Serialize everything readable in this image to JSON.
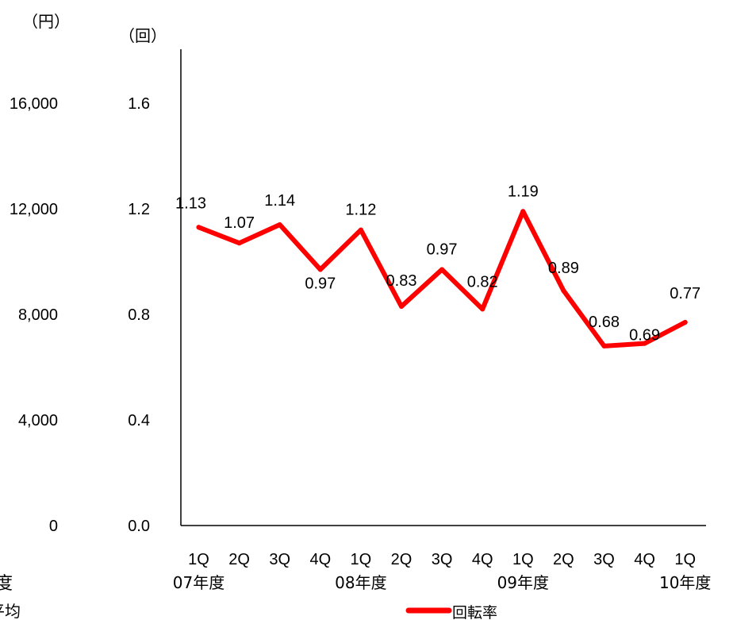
{
  "chart_data": {
    "type": "line",
    "left_axis": {
      "unit": "（円）",
      "ticks": [
        "16,000",
        "12,000",
        "8,000",
        "4,000",
        "0"
      ],
      "tick_values": [
        16000,
        12000,
        8000,
        4000,
        0
      ]
    },
    "y_axis": {
      "unit": "（回）",
      "ticks": [
        "1.6",
        "1.2",
        "0.8",
        "0.4",
        "0.0"
      ],
      "tick_values": [
        1.6,
        1.2,
        0.8,
        0.4,
        0.0
      ],
      "ylim": [
        0,
        1.8
      ]
    },
    "categories": [
      "1Q",
      "2Q",
      "3Q",
      "4Q",
      "1Q",
      "2Q",
      "3Q",
      "4Q",
      "1Q",
      "2Q",
      "3Q",
      "4Q",
      "1Q"
    ],
    "year_labels": [
      "07年度",
      "08年度",
      "09年度",
      "10年度"
    ],
    "year_label_anchor_index": [
      0,
      4,
      8,
      12
    ],
    "left_edge_labels": [
      "度",
      "平均"
    ],
    "series": [
      {
        "name": "回転率",
        "color": "#ff0000",
        "values": [
          1.13,
          1.07,
          1.14,
          0.97,
          1.12,
          0.83,
          0.97,
          0.82,
          1.19,
          0.89,
          0.68,
          0.69,
          0.77
        ],
        "data_labels": [
          "1.13",
          "1.07",
          "1.14",
          "0.97",
          "1.12",
          "0.83",
          "0.97",
          "0.82",
          "1.19",
          "0.89",
          "0.68",
          "0.69",
          "0.77"
        ]
      }
    ],
    "legend": {
      "placement": "bottom-center",
      "label": "回転率"
    },
    "grid": false
  }
}
